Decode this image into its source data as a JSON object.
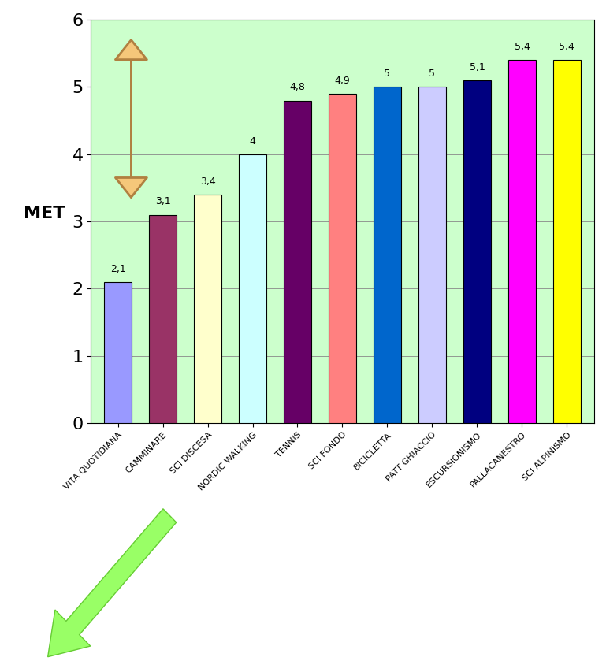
{
  "chart_data": {
    "type": "bar",
    "y_label": "MET",
    "categories": [
      "VITA QUOTIDIANA",
      "CAMMINARE",
      "SCI DISCESA",
      "NORDIC WALKING",
      "TENNIS",
      "SCI FONDO",
      "BICICLETTA",
      "PATT GHIACCIO",
      "ESCURSIONISMO",
      "PALLACANESTRO",
      "SCI ALPINISMO"
    ],
    "values": [
      2.1,
      3.1,
      3.4,
      4,
      4.8,
      4.9,
      5,
      5,
      5.1,
      5.4,
      5.4
    ],
    "value_labels": [
      "2,1",
      "3,1",
      "3,4",
      "4",
      "4,8",
      "4,9",
      "5",
      "5",
      "5,1",
      "5,4",
      "5,4"
    ],
    "colors": [
      "#9999ff",
      "#993366",
      "#ffffcc",
      "#ccffff",
      "#660066",
      "#ff8080",
      "#0066cc",
      "#ccccff",
      "#000080",
      "#ff00ff",
      "#ffff00"
    ],
    "ylim": [
      0,
      6
    ],
    "yticks": [
      0,
      1,
      2,
      3,
      4,
      5,
      6
    ],
    "grid": true,
    "data_labels": true
  }
}
